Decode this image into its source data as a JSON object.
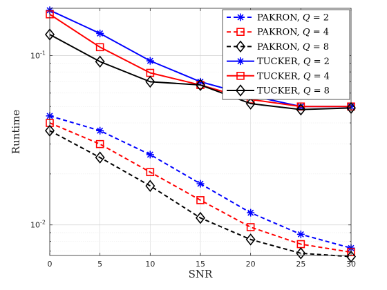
{
  "chart_data": {
    "type": "line",
    "title": "",
    "xlabel": "SNR",
    "ylabel": "Runtime",
    "x": [
      0,
      5,
      10,
      15,
      20,
      25,
      30
    ],
    "xticks": [
      0,
      5,
      10,
      15,
      20,
      25,
      30
    ],
    "xlim": [
      0,
      30
    ],
    "yscale": "log",
    "ylim": [
      0.0066,
      0.19
    ],
    "yticks": [
      {
        "value": 0.01,
        "base": "10",
        "exp": "-2"
      },
      {
        "value": 0.1,
        "base": "10",
        "exp": "-1"
      }
    ],
    "grid": true,
    "legend_position": "top-right",
    "series": [
      {
        "name": "PAKRON, Q = 2",
        "name_prefix": "PAKRON, ",
        "name_var": "Q",
        "name_suffix": " = 2",
        "color": "#0000ff",
        "dash": "dashed",
        "marker": "asterisk",
        "values": [
          0.044,
          0.036,
          0.026,
          0.0175,
          0.0118,
          0.0088,
          0.0073
        ]
      },
      {
        "name": "PAKRON, Q = 4",
        "name_prefix": "PAKRON, ",
        "name_var": "Q",
        "name_suffix": " = 4",
        "color": "#ff0000",
        "dash": "dashed",
        "marker": "square",
        "values": [
          0.04,
          0.03,
          0.0205,
          0.014,
          0.0097,
          0.0077,
          0.0069
        ]
      },
      {
        "name": "PAKRON, Q = 8",
        "name_prefix": "PAKRON, ",
        "name_var": "Q",
        "name_suffix": " = 8",
        "color": "#000000",
        "dash": "dashed",
        "marker": "diamond",
        "values": [
          0.036,
          0.025,
          0.017,
          0.011,
          0.0082,
          0.0068,
          0.0065
        ]
      },
      {
        "name": "TUCKER, Q = 2",
        "name_prefix": "TUCKER, ",
        "name_var": "Q",
        "name_suffix": " = 2",
        "color": "#0000ff",
        "dash": "solid",
        "marker": "asterisk",
        "values": [
          0.185,
          0.135,
          0.093,
          0.07,
          0.058,
          0.05,
          0.05
        ]
      },
      {
        "name": "TUCKER, Q = 4",
        "name_prefix": "TUCKER, ",
        "name_var": "Q",
        "name_suffix": " = 4",
        "color": "#ff0000",
        "dash": "solid",
        "marker": "square",
        "values": [
          0.175,
          0.112,
          0.079,
          0.067,
          0.055,
          0.05,
          0.05
        ]
      },
      {
        "name": "TUCKER, Q = 8",
        "name_prefix": "TUCKER, ",
        "name_var": "Q",
        "name_suffix": " = 8",
        "color": "#000000",
        "dash": "solid",
        "marker": "diamond",
        "values": [
          0.133,
          0.092,
          0.07,
          0.067,
          0.052,
          0.048,
          0.049
        ]
      }
    ]
  }
}
